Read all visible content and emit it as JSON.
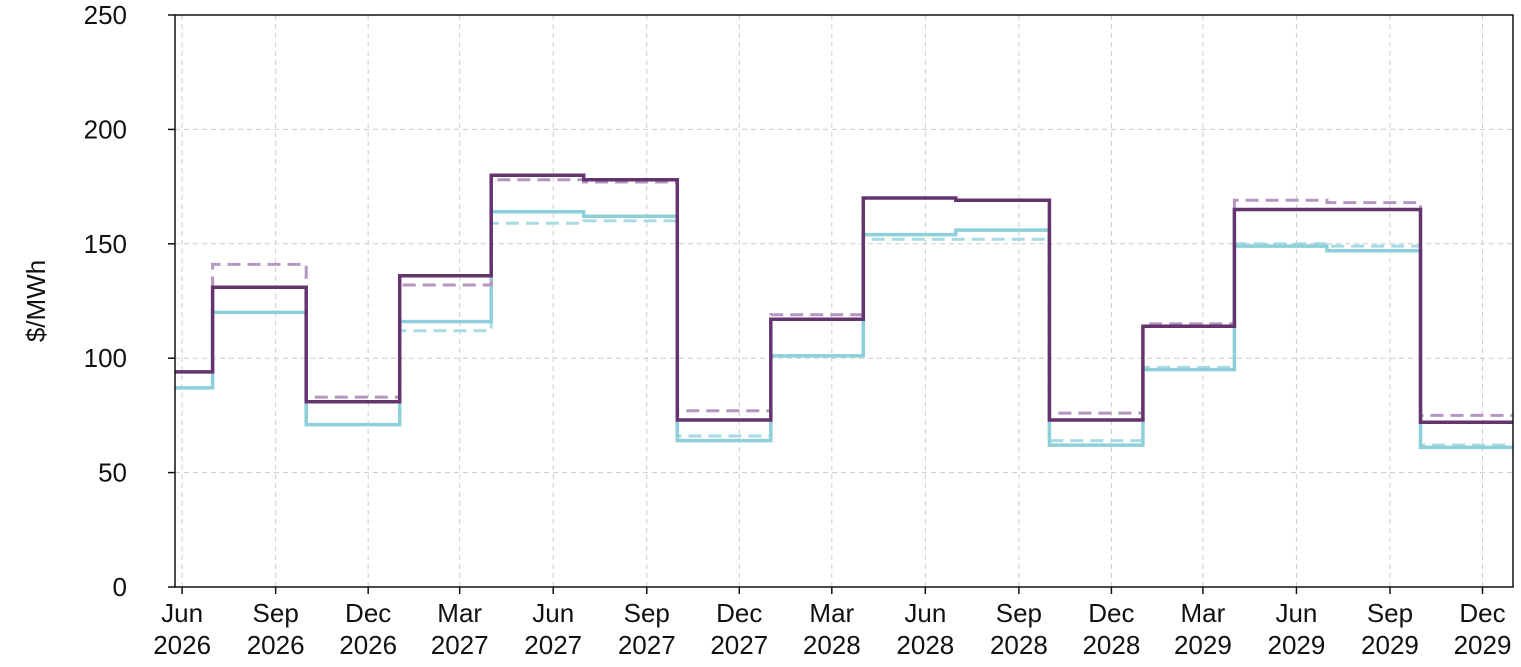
{
  "chart_data": {
    "type": "line",
    "step": "post",
    "title": "",
    "xlabel": "",
    "ylabel": "$/MWh",
    "ylim": [
      0,
      250
    ],
    "yticks": [
      0,
      50,
      100,
      150,
      200,
      250
    ],
    "xlim": [
      "2026-05-25",
      "2029-12-31"
    ],
    "xticks": [
      {
        "date": "2026-06-01",
        "label": [
          "Jun",
          "2026"
        ]
      },
      {
        "date": "2026-09-01",
        "label": [
          "Sep",
          "2026"
        ]
      },
      {
        "date": "2026-12-01",
        "label": [
          "Dec",
          "2026"
        ]
      },
      {
        "date": "2027-03-01",
        "label": [
          "Mar",
          "2027"
        ]
      },
      {
        "date": "2027-06-01",
        "label": [
          "Jun",
          "2027"
        ]
      },
      {
        "date": "2027-09-01",
        "label": [
          "Sep",
          "2027"
        ]
      },
      {
        "date": "2027-12-01",
        "label": [
          "Dec",
          "2027"
        ]
      },
      {
        "date": "2028-03-01",
        "label": [
          "Mar",
          "2028"
        ]
      },
      {
        "date": "2028-06-01",
        "label": [
          "Jun",
          "2028"
        ]
      },
      {
        "date": "2028-09-01",
        "label": [
          "Sep",
          "2028"
        ]
      },
      {
        "date": "2028-12-01",
        "label": [
          "Dec",
          "2028"
        ]
      },
      {
        "date": "2029-03-01",
        "label": [
          "Mar",
          "2029"
        ]
      },
      {
        "date": "2029-06-01",
        "label": [
          "Jun",
          "2029"
        ]
      },
      {
        "date": "2029-09-01",
        "label": [
          "Sep",
          "2029"
        ]
      },
      {
        "date": "2029-12-01",
        "label": [
          "Dec",
          "2029"
        ]
      }
    ],
    "grid": true,
    "x": [
      "2026-05-25",
      "2026-07-01",
      "2026-10-01",
      "2027-01-01",
      "2027-04-01",
      "2027-07-01",
      "2027-10-01",
      "2028-01-01",
      "2028-04-01",
      "2028-07-01",
      "2028-10-01",
      "2029-01-01",
      "2029-04-01",
      "2029-07-01",
      "2029-10-01",
      "2029-12-31"
    ],
    "series": [
      {
        "color": "#a7dbe3",
        "dash": true,
        "values": [
          87,
          120,
          71,
          112,
          159,
          160,
          66,
          101,
          152,
          152,
          64,
          96,
          150,
          149,
          62,
          62
        ]
      },
      {
        "color": "#8ed0da",
        "dash": false,
        "values": [
          87,
          120,
          71,
          116,
          164,
          162,
          64,
          101,
          154,
          156,
          62,
          95,
          149,
          147,
          61,
          61
        ]
      },
      {
        "color": "#b596c0",
        "dash": true,
        "values": [
          94,
          141,
          83,
          132,
          178,
          177,
          77,
          119,
          170,
          169,
          76,
          115,
          169,
          168,
          75,
          75
        ]
      },
      {
        "color": "#65346f",
        "dash": false,
        "values": [
          94,
          131,
          81,
          136,
          180,
          178,
          73,
          117,
          170,
          169,
          73,
          114,
          165,
          165,
          72,
          72
        ]
      }
    ]
  }
}
